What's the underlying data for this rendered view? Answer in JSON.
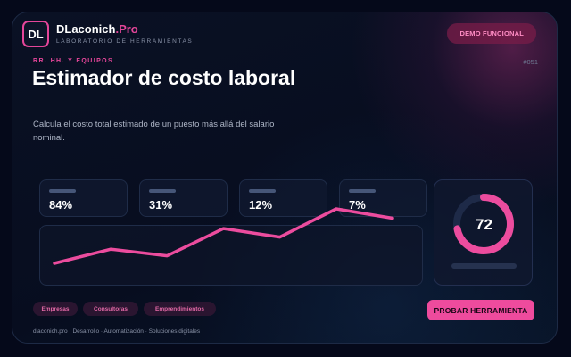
{
  "brand": {
    "logo_text": "DL",
    "name": "DLaconich",
    "name_suffix": ".Pro",
    "subtitle": "LABORATORIO DE HERRAMIENTAS"
  },
  "header": {
    "demo_label": "DEMO FUNCIONAL"
  },
  "tool": {
    "category": "RR. HH. Y EQUIPOS",
    "code": "#051",
    "title": "Estimador de costo laboral",
    "description": "Calcula el costo total estimado de un puesto más allá del salario nominal."
  },
  "stats": [
    "84%",
    "31%",
    "12%",
    "7%"
  ],
  "sparkline": {
    "values": [
      5,
      20,
      13,
      42,
      33,
      63,
      53
    ]
  },
  "gauge": {
    "value": 72,
    "label": "72"
  },
  "tags": [
    "Empresas",
    "Consultoras",
    "Emprendimientos"
  ],
  "cta": {
    "label": "PROBAR HERRAMIENTA"
  },
  "footer": {
    "text": "dlaconich.pro · Desarrollo · Automatización · Soluciones digitales"
  },
  "colors": {
    "accent": "#e5469a",
    "background": "#05091a",
    "panel": "#101a30"
  }
}
